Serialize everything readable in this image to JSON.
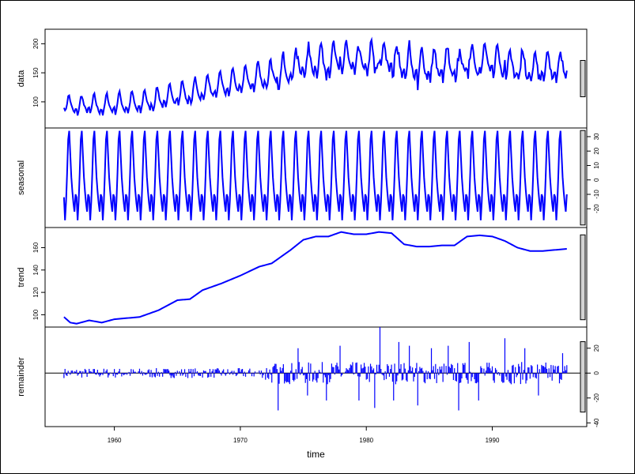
{
  "chart_data": {
    "type": "line",
    "start": 1956,
    "frequency": 12,
    "xlabel": "time",
    "xlim": [
      1954.5,
      1997.5
    ],
    "x_ticks": [
      1960,
      1970,
      1980,
      1990
    ],
    "x_tick_labels": [
      "1960",
      "1970",
      "1980",
      "1990"
    ],
    "series_color": "#0000ff",
    "panels": [
      {
        "name": "data",
        "label": "data",
        "ylim": [
          55,
          225
        ],
        "ticks": [
          100,
          150,
          200
        ],
        "tick_labels": [
          "100",
          "150",
          "200"
        ],
        "tick_side": "left",
        "bar_fraction": 0.38
      },
      {
        "name": "seasonal",
        "label": "seasonal",
        "ylim": [
          -33,
          36
        ],
        "ticks": [
          -20,
          -10,
          0,
          10,
          20,
          30
        ],
        "tick_labels": [
          "-20",
          "-10",
          "0",
          "10",
          "20",
          "30"
        ],
        "tick_side": "right",
        "bar_fraction": 0.98
      },
      {
        "name": "trend",
        "label": "trend",
        "ylim": [
          89,
          178
        ],
        "ticks": [
          100,
          120,
          140,
          160
        ],
        "tick_labels": [
          "100",
          "120",
          "140",
          "160"
        ],
        "tick_side": "left",
        "bar_fraction": 0.88
      },
      {
        "name": "remainder",
        "label": "remainder",
        "ylim": [
          -43,
          37
        ],
        "ticks": [
          -40,
          -20,
          0,
          20
        ],
        "tick_labels": [
          "-40",
          "-20",
          "0",
          "20"
        ],
        "tick_side": "right",
        "bar_fraction": 0.73
      }
    ],
    "seasonal_pattern": [
      -12,
      -28,
      -15,
      5,
      28,
      34,
      18,
      2,
      -8,
      -16,
      -22,
      -10
    ],
    "trend_knots": [
      [
        1956.0,
        98
      ],
      [
        1956.5,
        93
      ],
      [
        1957.0,
        92
      ],
      [
        1958.0,
        95
      ],
      [
        1959.0,
        93
      ],
      [
        1960.0,
        96
      ],
      [
        1962.0,
        98
      ],
      [
        1963.5,
        104
      ],
      [
        1965.0,
        113
      ],
      [
        1966.0,
        114
      ],
      [
        1967.0,
        122
      ],
      [
        1968.5,
        128
      ],
      [
        1970.0,
        135
      ],
      [
        1971.5,
        143
      ],
      [
        1972.5,
        146
      ],
      [
        1974.0,
        158
      ],
      [
        1975.0,
        167
      ],
      [
        1976.0,
        170
      ],
      [
        1977.0,
        170
      ],
      [
        1978.0,
        174
      ],
      [
        1979.0,
        172
      ],
      [
        1980.0,
        172
      ],
      [
        1981.0,
        174
      ],
      [
        1982.0,
        173
      ],
      [
        1983.0,
        163
      ],
      [
        1984.0,
        161
      ],
      [
        1985.0,
        161
      ],
      [
        1986.0,
        162
      ],
      [
        1987.0,
        162
      ],
      [
        1988.0,
        170
      ],
      [
        1989.0,
        171
      ],
      [
        1990.0,
        170
      ],
      [
        1991.0,
        166
      ],
      [
        1992.0,
        160
      ],
      [
        1993.0,
        157
      ],
      [
        1994.0,
        157
      ],
      [
        1995.0,
        158
      ],
      [
        1996.0,
        159
      ]
    ],
    "remainder_spikes": [
      [
        1973.0,
        -30
      ],
      [
        1974.6,
        20
      ],
      [
        1975.3,
        -18
      ],
      [
        1976.8,
        -22
      ],
      [
        1977.9,
        22
      ],
      [
        1979.4,
        -22
      ],
      [
        1980.7,
        -28
      ],
      [
        1981.1,
        37
      ],
      [
        1982.2,
        -22
      ],
      [
        1982.6,
        25
      ],
      [
        1983.4,
        22
      ],
      [
        1984.1,
        -26
      ],
      [
        1985.2,
        20
      ],
      [
        1986.5,
        22
      ],
      [
        1987.3,
        -30
      ],
      [
        1988.2,
        25
      ],
      [
        1988.9,
        -22
      ],
      [
        1991.0,
        28
      ],
      [
        1992.6,
        20
      ],
      [
        1993.7,
        -18
      ],
      [
        1995.6,
        16
      ]
    ]
  }
}
